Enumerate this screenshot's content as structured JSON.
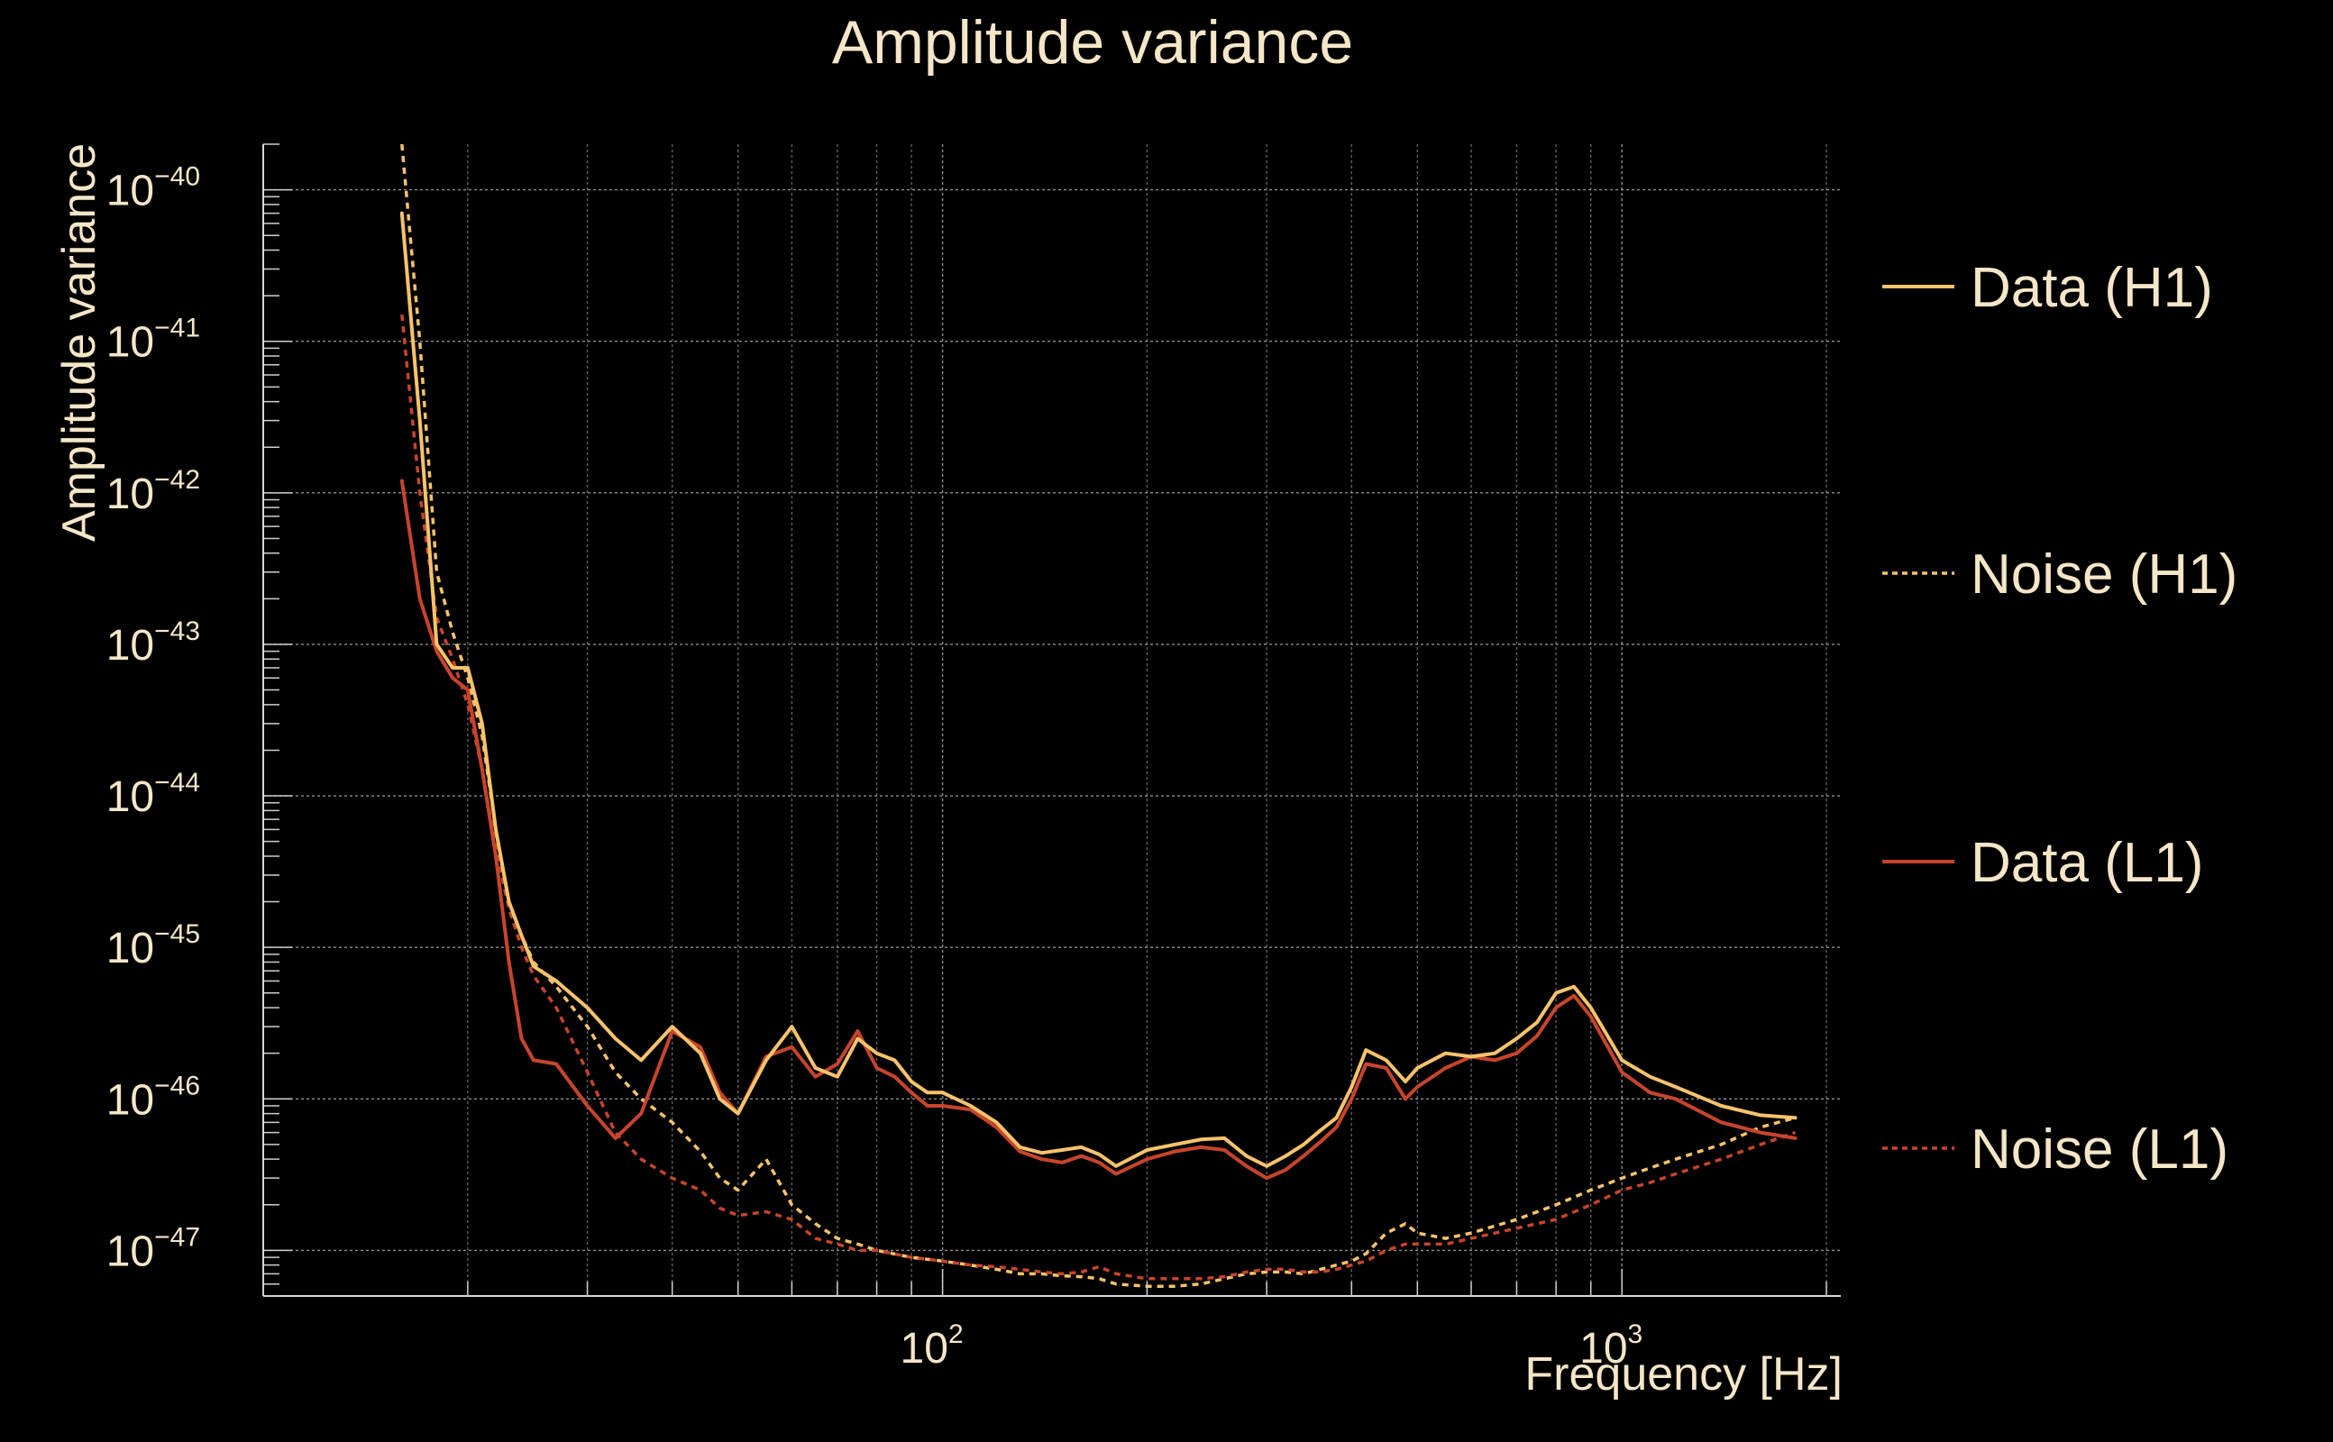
{
  "chart_data": {
    "type": "line",
    "title": "Amplitude variance",
    "xlabel": "Frequency [Hz]",
    "ylabel": "Amplitude variance",
    "xscale": "log",
    "yscale": "log",
    "xlim": [
      10,
      2100
    ],
    "ylim": [
      5e-48,
      2e-40
    ],
    "grid": true,
    "legend_position": "right",
    "x_ticks": [
      {
        "base": "10",
        "exp": "2",
        "value": 100
      },
      {
        "base": "10",
        "exp": "3",
        "value": 1000
      }
    ],
    "y_ticks": [
      {
        "base": "10",
        "exp": "−40",
        "value": 1e-40
      },
      {
        "base": "10",
        "exp": "−41",
        "value": 1e-41
      },
      {
        "base": "10",
        "exp": "−42",
        "value": 1e-42
      },
      {
        "base": "10",
        "exp": "−43",
        "value": 1e-43
      },
      {
        "base": "10",
        "exp": "−44",
        "value": 1e-44
      },
      {
        "base": "10",
        "exp": "−45",
        "value": 1e-45
      },
      {
        "base": "10",
        "exp": "−46",
        "value": 1e-46
      },
      {
        "base": "10",
        "exp": "−47",
        "value": 1e-47
      }
    ],
    "series": [
      {
        "name": "Data (H1)",
        "color": "#f5c36b",
        "style": "solid",
        "x": [
          16,
          17,
          18,
          19,
          20,
          21,
          22,
          23,
          24,
          25,
          27,
          30,
          33,
          36,
          40,
          44,
          47,
          50,
          55,
          60,
          65,
          70,
          75,
          80,
          85,
          90,
          95,
          100,
          110,
          120,
          130,
          140,
          150,
          160,
          170,
          180,
          200,
          220,
          240,
          260,
          280,
          300,
          320,
          340,
          360,
          380,
          400,
          420,
          450,
          480,
          500,
          550,
          600,
          650,
          700,
          750,
          800,
          850,
          900,
          1000,
          1100,
          1200,
          1400,
          1600,
          1800
        ],
        "y": [
          7e-41,
          3e-42,
          1e-43,
          7e-44,
          7e-44,
          3e-44,
          6e-45,
          2e-45,
          1.2e-45,
          7.5e-46,
          6e-46,
          4e-46,
          2.5e-46,
          1.8e-46,
          3e-46,
          2e-46,
          1e-46,
          8e-47,
          1.8e-46,
          3e-46,
          1.6e-46,
          1.4e-46,
          2.5e-46,
          2e-46,
          1.8e-46,
          1.3e-46,
          1.1e-46,
          1.1e-46,
          9e-47,
          7e-47,
          4.8e-47,
          4.4e-47,
          4.6e-47,
          4.8e-47,
          4.3e-47,
          3.6e-47,
          4.6e-47,
          5e-47,
          5.4e-47,
          5.5e-47,
          4.2e-47,
          3.6e-47,
          4.2e-47,
          5e-47,
          6.2e-47,
          7.5e-47,
          1.2e-46,
          2.1e-46,
          1.8e-46,
          1.3e-46,
          1.6e-46,
          2e-46,
          1.9e-46,
          2e-46,
          2.5e-46,
          3.2e-46,
          5e-46,
          5.5e-46,
          4e-46,
          1.8e-46,
          1.4e-46,
          1.2e-46,
          9e-47,
          7.8e-47,
          7.5e-47
        ]
      },
      {
        "name": "Noise (H1)",
        "color": "#f5c36b",
        "style": "dotted",
        "x": [
          16,
          17,
          18,
          19,
          20,
          21,
          22,
          23,
          24,
          25,
          27,
          30,
          33,
          36,
          40,
          44,
          47,
          50,
          55,
          60,
          65,
          70,
          75,
          80,
          90,
          100,
          110,
          120,
          130,
          140,
          150,
          160,
          170,
          180,
          200,
          220,
          240,
          260,
          280,
          300,
          320,
          340,
          360,
          380,
          400,
          420,
          450,
          480,
          500,
          550,
          600,
          700,
          800,
          900,
          1000,
          1100,
          1200,
          1400,
          1600,
          1800
        ],
        "y": [
          2e-40,
          1e-41,
          3e-43,
          1.2e-43,
          6e-44,
          2.5e-44,
          6e-45,
          2e-45,
          1.2e-45,
          8e-46,
          5.5e-46,
          3e-46,
          1.5e-46,
          1e-46,
          7e-47,
          4.5e-47,
          3e-47,
          2.5e-47,
          4e-47,
          2e-47,
          1.5e-47,
          1.2e-47,
          1.1e-47,
          1e-47,
          9e-48,
          8.5e-48,
          8e-48,
          7.5e-48,
          7e-48,
          7e-48,
          6.8e-48,
          6.7e-48,
          6.5e-48,
          6e-48,
          5.8e-48,
          5.8e-48,
          6e-48,
          6.5e-48,
          7e-48,
          7.2e-48,
          7.2e-48,
          7e-48,
          7.5e-48,
          8e-48,
          8.5e-48,
          9.5e-48,
          1.3e-47,
          1.5e-47,
          1.3e-47,
          1.2e-47,
          1.3e-47,
          1.6e-47,
          2e-47,
          2.5e-47,
          3e-47,
          3.5e-47,
          4e-47,
          5e-47,
          6.5e-47,
          7.5e-47
        ]
      },
      {
        "name": "Data (L1)",
        "color": "#c8442c",
        "style": "solid",
        "x": [
          16,
          17,
          18,
          19,
          20,
          21,
          22,
          23,
          24,
          25,
          27,
          30,
          33,
          36,
          40,
          44,
          47,
          50,
          55,
          60,
          65,
          70,
          75,
          80,
          85,
          90,
          95,
          100,
          110,
          120,
          130,
          140,
          150,
          160,
          170,
          180,
          200,
          220,
          240,
          260,
          280,
          300,
          320,
          340,
          360,
          380,
          400,
          420,
          450,
          480,
          500,
          550,
          600,
          650,
          700,
          750,
          800,
          850,
          900,
          1000,
          1100,
          1200,
          1400,
          1600,
          1800
        ],
        "y": [
          1.2e-42,
          2e-43,
          9e-44,
          6e-44,
          5e-44,
          1.5e-44,
          4e-45,
          8e-46,
          2.5e-46,
          1.8e-46,
          1.7e-46,
          9e-47,
          5.5e-47,
          8e-47,
          2.8e-46,
          2.2e-46,
          1.1e-46,
          8e-47,
          1.9e-46,
          2.2e-46,
          1.4e-46,
          1.7e-46,
          2.8e-46,
          1.6e-46,
          1.4e-46,
          1.1e-46,
          9e-47,
          9e-47,
          8.5e-47,
          6.5e-47,
          4.5e-47,
          4e-47,
          3.8e-47,
          4.2e-47,
          3.8e-47,
          3.2e-47,
          4e-47,
          4.5e-47,
          4.8e-47,
          4.6e-47,
          3.6e-47,
          3e-47,
          3.4e-47,
          4.2e-47,
          5.2e-47,
          6.5e-47,
          1e-46,
          1.7e-46,
          1.6e-46,
          1e-46,
          1.2e-46,
          1.6e-46,
          1.9e-46,
          1.8e-46,
          2e-46,
          2.6e-46,
          4e-46,
          4.8e-46,
          3.5e-46,
          1.5e-46,
          1.1e-46,
          1e-46,
          7e-47,
          6e-47,
          5.5e-47
        ]
      },
      {
        "name": "Noise (L1)",
        "color": "#c8442c",
        "style": "dotted",
        "x": [
          16,
          17,
          18,
          19,
          20,
          21,
          22,
          23,
          24,
          25,
          27,
          30,
          33,
          36,
          40,
          44,
          47,
          50,
          55,
          60,
          65,
          70,
          75,
          80,
          90,
          100,
          110,
          120,
          130,
          140,
          150,
          160,
          170,
          180,
          200,
          220,
          240,
          260,
          280,
          300,
          320,
          340,
          360,
          380,
          400,
          420,
          450,
          480,
          500,
          550,
          600,
          700,
          800,
          900,
          1000,
          1100,
          1200,
          1400,
          1600,
          1800
        ],
        "y": [
          1.5e-41,
          1e-42,
          1.5e-43,
          8e-44,
          4e-44,
          1.5e-44,
          4.5e-45,
          1.8e-45,
          1e-45,
          6.5e-46,
          4e-46,
          1.5e-46,
          6e-47,
          4e-47,
          3e-47,
          2.5e-47,
          1.9e-47,
          1.7e-47,
          1.8e-47,
          1.6e-47,
          1.2e-47,
          1.1e-47,
          1e-47,
          1e-47,
          9e-48,
          8.5e-48,
          8e-48,
          7.8e-48,
          7.5e-48,
          7.2e-48,
          7e-48,
          7.2e-48,
          7.8e-48,
          7e-48,
          6.5e-48,
          6.5e-48,
          6.5e-48,
          6.7e-48,
          7.2e-48,
          7.5e-48,
          7.5e-48,
          7.2e-48,
          7.2e-48,
          7.5e-48,
          8e-48,
          8.5e-48,
          1e-47,
          1.1e-47,
          1.1e-47,
          1.1e-47,
          1.2e-47,
          1.4e-47,
          1.6e-47,
          2e-47,
          2.5e-47,
          2.8e-47,
          3.2e-47,
          4e-47,
          5e-47,
          6e-47
        ]
      }
    ]
  }
}
